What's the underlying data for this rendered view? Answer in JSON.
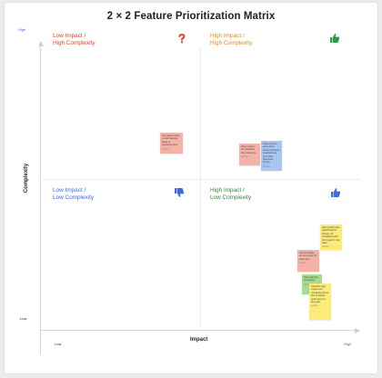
{
  "title": "2 × 2  Feature Prioritization Matrix",
  "axes": {
    "x_title": "Impact",
    "y_title": "Complexity",
    "x_low": "Low",
    "x_high": "High",
    "y_low": "Low",
    "y_high": "High"
  },
  "quadrants": [
    {
      "line1": "Low Impact /",
      "line2": "High Complexity",
      "color": "#e0461f",
      "icon": "question-mark-icon"
    },
    {
      "line1": "High Impact /",
      "line2": "High Complexity",
      "color": "#e68a1a",
      "icon": "thumbs-up-icon"
    },
    {
      "line1": "Low Impact /",
      "line2": "Low Complexity",
      "color": "#3f6ad8",
      "icon": "thumbs-down-icon"
    },
    {
      "line1": "High Impact /",
      "line2": "Low Complexity",
      "color": "#2e8a35",
      "icon": "thumbs-up-icon"
    }
  ],
  "colors": {
    "note_red": "#f4b3a6",
    "note_blue": "#a9c6f2",
    "note_yellow": "#fbeb78",
    "note_green": "#a6dc8f"
  },
  "notes": [
    {
      "color": "red",
      "text": "Use sticky notes to add features, ideas or questions here",
      "meta": "Author"
    },
    {
      "color": "red",
      "text": "Drop notes in the quadrant they belong to",
      "meta": "Author"
    },
    {
      "color": "blue",
      "text": "Drag notes to move them around between quadrants as your team discusses priority",
      "meta": "Author"
    },
    {
      "color": "yellow",
      "text": "Add a quick note describing the feature, its complexity and the impact it may have",
      "meta": "Author"
    },
    {
      "color": "red",
      "text": "Vote to decide on next steps for each item",
      "meta": "Author"
    },
    {
      "color": "green",
      "text": "Start with low complexity",
      "meta": "Author"
    },
    {
      "color": "yellow",
      "text": "Prioritize high impact, low complexity items first to deliver quick wins for the team",
      "meta": "Author"
    }
  ]
}
